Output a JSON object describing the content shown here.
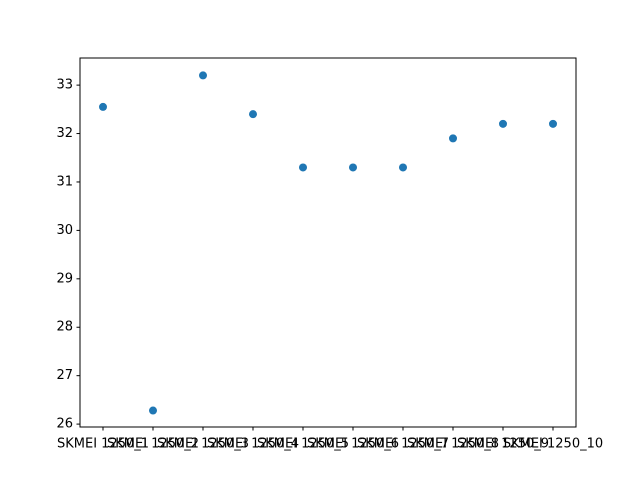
{
  "chart_data": {
    "type": "scatter",
    "categories": [
      "SKMEI 1250_1",
      "SKMEI 1250_2",
      "SKMEI 1250_3",
      "SKMEI 1250_4",
      "SKMEI 1250_5",
      "SKMEI 1250_6",
      "SKMEI 1250_7",
      "SKMEI 1250_8",
      "SKMEI 1250_9",
      "SKMEI 1250_10"
    ],
    "values": [
      32.55,
      26.28,
      33.2,
      32.4,
      31.3,
      31.3,
      31.3,
      31.9,
      32.2,
      32.2
    ],
    "color": "#1f77b4",
    "ylim": [
      25.94,
      33.56
    ],
    "yticks": [
      26,
      27,
      28,
      29,
      30,
      31,
      32,
      33
    ],
    "grid": false
  }
}
